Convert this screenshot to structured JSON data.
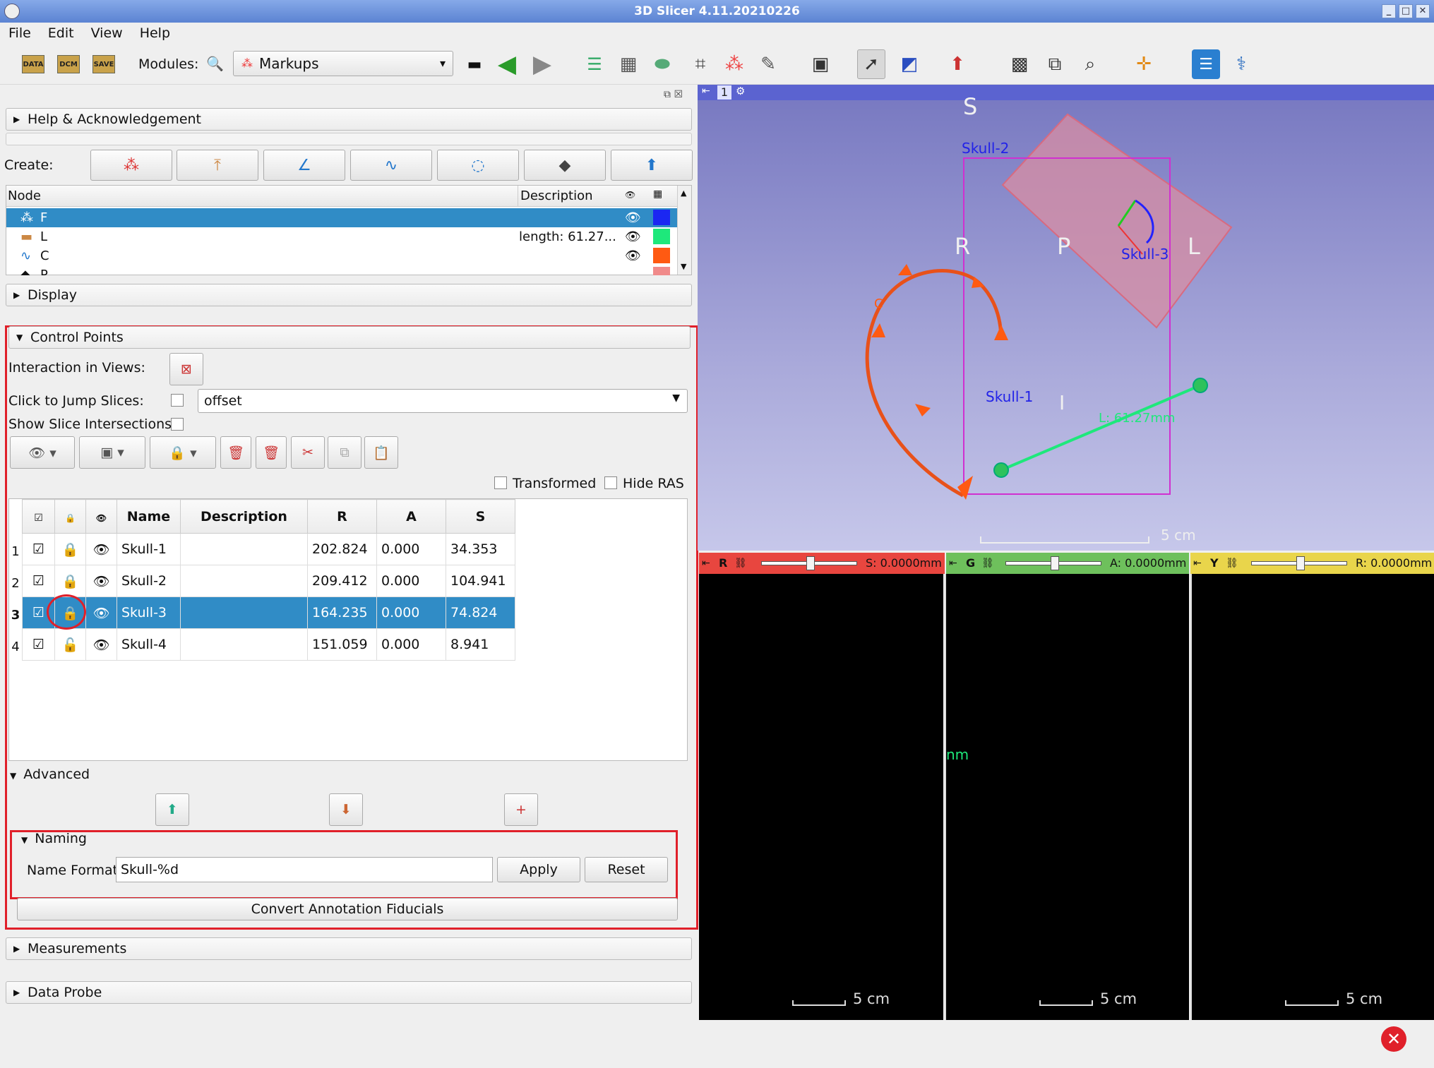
{
  "window": {
    "title": "3D Slicer 4.11.20210226"
  },
  "menu": [
    "File",
    "Edit",
    "View",
    "Help"
  ],
  "toolbar": {
    "data_label": "DATA",
    "dcm_label": "DCM",
    "save_label": "SAVE",
    "modules_label": "Modules:",
    "module_selected": "Markups"
  },
  "sections": {
    "help": "Help & Acknowledgement",
    "display": "Display",
    "control_points": "Control Points",
    "advanced": "Advanced",
    "naming": "Naming",
    "measurements": "Measurements",
    "data_probe": "Data Probe"
  },
  "create": {
    "label": "Create:"
  },
  "node_tree": {
    "headers": {
      "node": "Node",
      "description": "Description"
    },
    "rows": [
      {
        "name": "F",
        "description": "",
        "color": "#1b27f2",
        "icon": "fiducial-icon"
      },
      {
        "name": "L",
        "description": "length: 61.27...",
        "color": "#1ee87b",
        "icon": "line-icon"
      },
      {
        "name": "C",
        "description": "",
        "color": "#ff5a12",
        "icon": "curve-icon"
      },
      {
        "name": "P",
        "description": "",
        "color": "#f08a8a",
        "icon": "plane-icon"
      }
    ]
  },
  "control_points": {
    "interaction_label": "Interaction in Views:",
    "jump_label": "Click to Jump Slices:",
    "jump_mode": "offset",
    "intersections_label": "Show Slice Intersections:",
    "transformed_label": "Transformed",
    "hide_ras_label": "Hide RAS",
    "table": {
      "headers": [
        "Name",
        "Description",
        "R",
        "A",
        "S"
      ],
      "rows": [
        {
          "num": "1",
          "name": "Skull-1",
          "desc": "",
          "r": "202.824",
          "a": "0.000",
          "s": "34.353"
        },
        {
          "num": "2",
          "name": "Skull-2",
          "desc": "",
          "r": "209.412",
          "a": "0.000",
          "s": "104.941"
        },
        {
          "num": "3",
          "name": "Skull-3",
          "desc": "",
          "r": "164.235",
          "a": "0.000",
          "s": "74.824"
        },
        {
          "num": "4",
          "name": "Skull-4",
          "desc": "",
          "r": "151.059",
          "a": "0.000",
          "s": "8.941"
        }
      ]
    }
  },
  "naming": {
    "format_label": "Name Format",
    "format_value": "Skull-%d",
    "apply_label": "Apply",
    "reset_label": "Reset"
  },
  "convert_label": "Convert Annotation Fiducials",
  "view3d": {
    "view_number": "1",
    "orient": {
      "S": "S",
      "R": "R",
      "P": "P",
      "L": "L",
      "I": "I"
    },
    "labels": {
      "skull1": "Skull-1",
      "skull2": "Skull-2",
      "skull3": "Skull-3",
      "length": "L: 61.27mm",
      "curve": "C"
    },
    "scale": "5 cm"
  },
  "slices": [
    {
      "letter": "R",
      "color": "#e8463f",
      "offset": "S: 0.0000mm",
      "scale": "5 cm"
    },
    {
      "letter": "G",
      "color": "#6ec05c",
      "offset": "A: 0.0000mm",
      "scale": "5 cm"
    },
    {
      "letter": "Y",
      "color": "#e9d54b",
      "offset": "R: 0.0000mm",
      "scale": "5 cm"
    }
  ],
  "green_slice_text": "nm"
}
